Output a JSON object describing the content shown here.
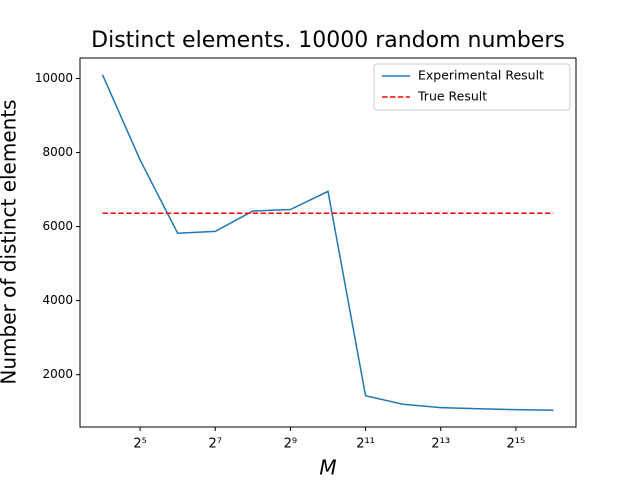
{
  "chart_data": {
    "type": "line",
    "title": "Distinct elements. 10000 random numbers",
    "x_label": "M",
    "y_label": "Number of distinct elements",
    "x": [
      16,
      32,
      64,
      128,
      256,
      512,
      1024,
      2048,
      4096,
      8192,
      16384,
      32768,
      65536
    ],
    "series": [
      {
        "name": "Experimental Result",
        "color": "#1f77b4",
        "dash": false,
        "values": [
          10100,
          7800,
          5820,
          5870,
          6420,
          6460,
          6950,
          1430,
          1200,
          1110,
          1080,
          1055,
          1040
        ]
      },
      {
        "name": "True Result",
        "color": "#ff0000",
        "dash": true,
        "values": [
          6360,
          6360,
          6360,
          6360,
          6360,
          6360,
          6360,
          6360,
          6360,
          6360,
          6360,
          6360,
          6360
        ]
      }
    ],
    "xscale": "log2",
    "xlim": [
      10.56,
      99334
    ],
    "xticks": [
      {
        "value": 32,
        "label": "2⁵"
      },
      {
        "value": 128,
        "label": "2⁷"
      },
      {
        "value": 512,
        "label": "2⁹"
      },
      {
        "value": 2048,
        "label": "2¹¹"
      },
      {
        "value": 8192,
        "label": "2¹³"
      },
      {
        "value": 32768,
        "label": "2¹⁵"
      }
    ],
    "ylim": [
      587,
      10553
    ],
    "yticks": [
      2000,
      4000,
      6000,
      8000,
      10000
    ],
    "legend": "upper right",
    "grid": false
  }
}
